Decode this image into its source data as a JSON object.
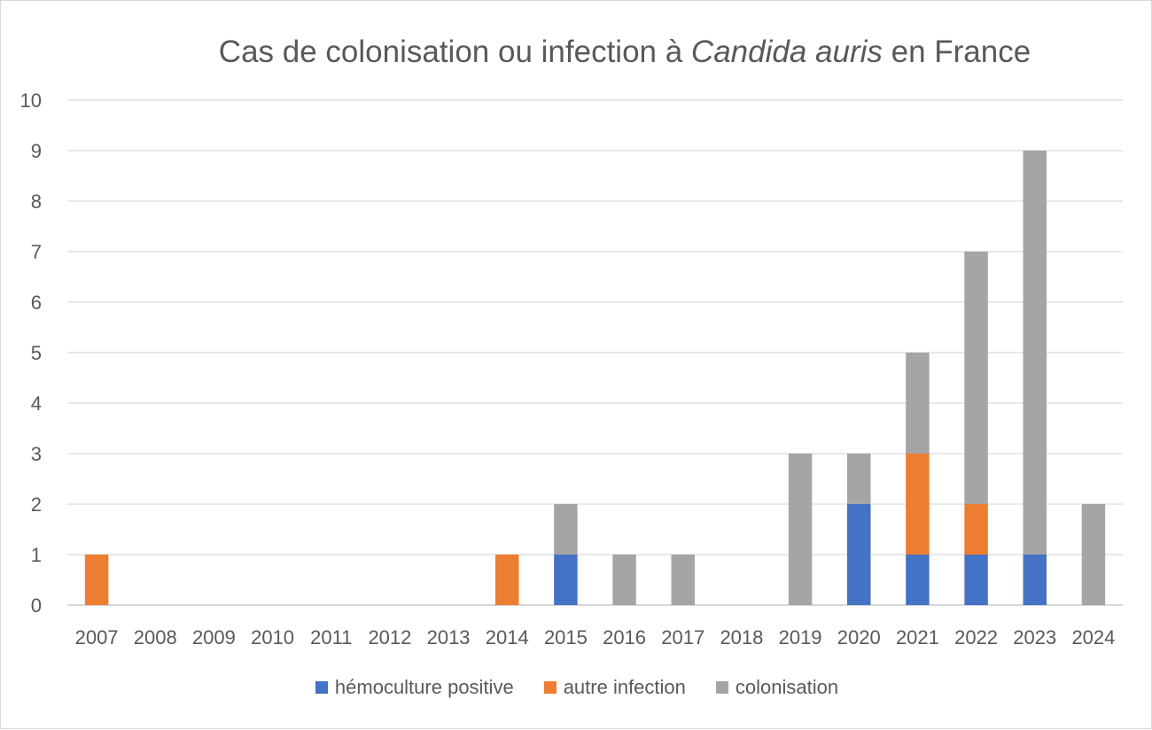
{
  "chart_data": {
    "type": "bar",
    "stacked": true,
    "title_prefix": "Cas de colonisation ou infection à ",
    "title_italic": "Candida auris",
    "title_suffix": " en France",
    "xlabel": "",
    "ylabel": "",
    "ylim": [
      0,
      10
    ],
    "yticks": [
      "0",
      "1",
      "2",
      "3",
      "4",
      "5",
      "6",
      "7",
      "8",
      "9",
      "10"
    ],
    "grid": true,
    "legend_position": "bottom",
    "categories": [
      "2007",
      "2008",
      "2009",
      "2010",
      "2011",
      "2012",
      "2013",
      "2014",
      "2015",
      "2016",
      "2017",
      "2018",
      "2019",
      "2020",
      "2021",
      "2022",
      "2023",
      "2024"
    ],
    "series": [
      {
        "name": "hémoculture positive",
        "color": "#4472c4",
        "values": [
          0,
          0,
          0,
          0,
          0,
          0,
          0,
          0,
          1,
          0,
          0,
          0,
          0,
          2,
          1,
          1,
          1,
          0
        ]
      },
      {
        "name": "autre infection",
        "color": "#ed7d31",
        "values": [
          1,
          0,
          0,
          0,
          0,
          0,
          0,
          1,
          0,
          0,
          0,
          0,
          0,
          0,
          2,
          1,
          0,
          0
        ]
      },
      {
        "name": "colonisation",
        "color": "#a5a5a5",
        "values": [
          0,
          0,
          0,
          0,
          0,
          0,
          0,
          0,
          1,
          1,
          1,
          0,
          3,
          1,
          2,
          5,
          8,
          2
        ]
      }
    ]
  }
}
